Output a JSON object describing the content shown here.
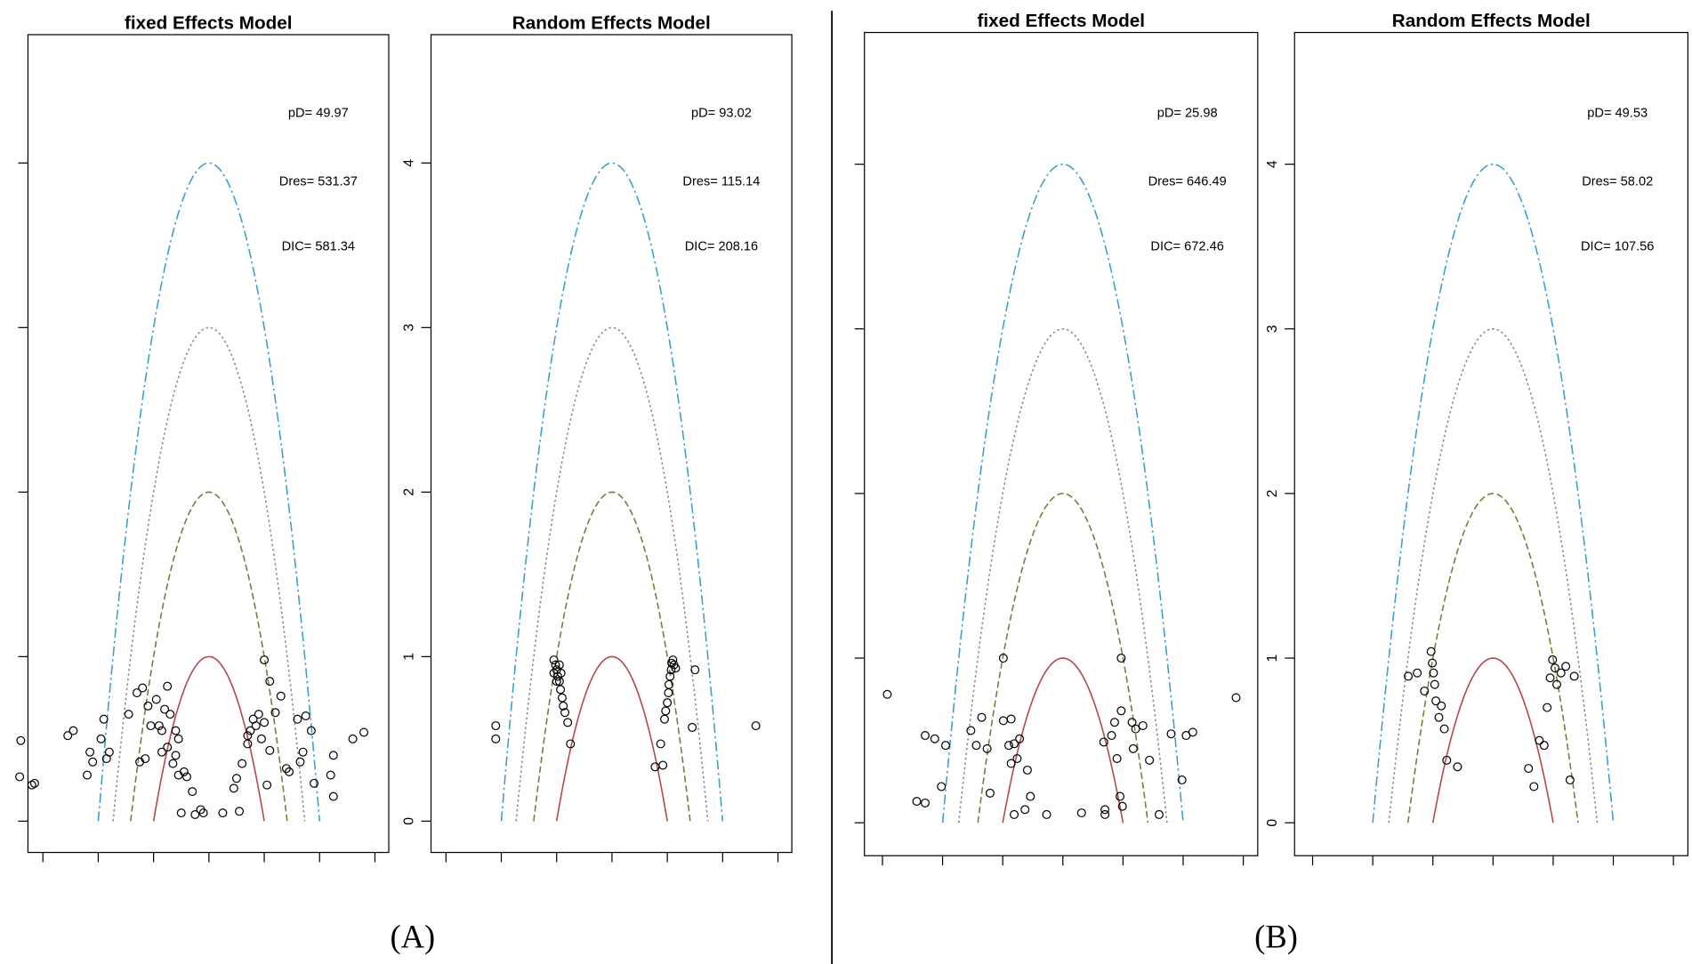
{
  "chart_data": [
    {
      "type": "scatter",
      "title": "fixed Effects Model",
      "x": [
        -3.4,
        -3.42,
        -3.2,
        -3.15,
        -2.55,
        -2.45,
        -2.2,
        -2.15,
        -2.1,
        -1.95,
        -1.9,
        -1.85,
        -1.8,
        -1.45,
        -1.3,
        -1.25,
        -1.2,
        -1.15,
        -1.1,
        -1.05,
        -0.9,
        -0.95,
        -0.85,
        -0.85,
        -0.8,
        -0.75,
        -0.75,
        -0.7,
        -0.65,
        -0.6,
        -0.6,
        -0.55,
        -0.55,
        -0.5,
        -0.45,
        -0.4,
        -0.3,
        -0.25,
        -0.15,
        -0.1,
        0.25,
        0.45,
        0.5,
        0.55,
        0.6,
        0.7,
        0.7,
        0.75,
        0.8,
        0.85,
        0.9,
        0.95,
        1.0,
        1.0,
        1.05,
        1.1,
        1.1,
        1.2,
        1.3,
        1.4,
        1.45,
        1.6,
        1.65,
        1.7,
        1.75,
        1.85,
        1.9,
        2.2,
        2.25,
        2.25,
        2.6,
        2.8
      ],
      "y": [
        0.49,
        0.27,
        0.22,
        0.23,
        0.52,
        0.55,
        0.28,
        0.42,
        0.36,
        0.5,
        0.62,
        0.38,
        0.42,
        0.65,
        0.78,
        0.36,
        0.81,
        0.38,
        0.7,
        0.58,
        0.58,
        0.74,
        0.42,
        0.55,
        0.68,
        0.82,
        0.45,
        0.65,
        0.35,
        0.55,
        0.4,
        0.5,
        0.28,
        0.05,
        0.3,
        0.27,
        0.18,
        0.04,
        0.07,
        0.05,
        0.05,
        0.2,
        0.26,
        0.06,
        0.35,
        0.47,
        0.52,
        0.55,
        0.62,
        0.58,
        0.65,
        0.5,
        0.98,
        0.6,
        0.22,
        0.85,
        0.43,
        0.66,
        0.76,
        0.32,
        0.3,
        0.62,
        0.36,
        0.42,
        0.64,
        0.55,
        0.23,
        0.28,
        0.4,
        0.15,
        0.5,
        0.54
      ],
      "xlim": [
        -3.27,
        3.25
      ],
      "ylim": [
        -0.19,
        4.78
      ],
      "xticks": [
        -3,
        -2,
        -1,
        0,
        1,
        2,
        3
      ],
      "yticks": [
        0,
        1,
        2,
        3,
        4
      ],
      "ytick_labels": false,
      "point_color": "#000000",
      "curves": [
        {
          "value": 1,
          "color": "#b5474b",
          "style": "solid"
        },
        {
          "value": 2,
          "color": "#7a7a3a",
          "style": "dashed"
        },
        {
          "value": 3,
          "color": "#8a8a8a",
          "style": "dotted"
        },
        {
          "value": 4,
          "color": "#3aa0d0",
          "style": "dashdot"
        }
      ],
      "annotations": [
        "pD= 49.97",
        "Dres= 531.37",
        "DIC= 581.34"
      ]
    },
    {
      "type": "scatter",
      "title": "Random Effects Model",
      "x": [
        -2.1,
        -2.1,
        -1.05,
        -1.02,
        -1.0,
        -0.98,
        -0.95,
        -0.93,
        -0.9,
        -0.88,
        -0.85,
        -1.0,
        -1.05,
        -0.95,
        -0.92,
        -0.8,
        -0.75,
        0.78,
        0.88,
        0.92,
        0.95,
        0.97,
        1.0,
        1.02,
        1.03,
        1.05,
        1.07,
        1.08,
        1.1,
        1.12,
        1.15,
        1.45,
        1.5,
        2.6
      ],
      "y": [
        0.58,
        0.5,
        0.98,
        0.95,
        0.92,
        0.88,
        0.85,
        0.8,
        0.75,
        0.7,
        0.66,
        0.85,
        0.9,
        0.95,
        0.9,
        0.6,
        0.47,
        0.33,
        0.47,
        0.34,
        0.62,
        0.67,
        0.72,
        0.78,
        0.83,
        0.88,
        0.92,
        0.96,
        0.98,
        0.95,
        0.93,
        0.57,
        0.92,
        0.58
      ],
      "xlim": [
        -3.27,
        3.25
      ],
      "ylim": [
        -0.19,
        4.78
      ],
      "xticks": [
        -3,
        -2,
        -1,
        0,
        1,
        2,
        3
      ],
      "yticks": [
        0,
        1,
        2,
        3,
        4
      ],
      "ytick_labels": true,
      "point_color": "#000000",
      "curves": [
        {
          "value": 1,
          "color": "#b5474b",
          "style": "solid"
        },
        {
          "value": 2,
          "color": "#7a7a3a",
          "style": "dashed"
        },
        {
          "value": 3,
          "color": "#8a8a8a",
          "style": "dotted"
        },
        {
          "value": 4,
          "color": "#3aa0d0",
          "style": "dashdot"
        }
      ],
      "annotations": [
        "pD= 93.02",
        "Dres= 115.14",
        "DIC= 208.16"
      ]
    },
    {
      "type": "scatter",
      "title": "fixed Effects Model",
      "x": [
        -2.92,
        -2.29,
        -2.13,
        -1.95,
        -2.43,
        -2.29,
        -2.02,
        -1.53,
        -1.44,
        -1.35,
        -1.26,
        -1.21,
        -0.99,
        -0.99,
        -0.86,
        -0.9,
        -0.81,
        -0.86,
        -0.76,
        -0.72,
        -0.59,
        -0.81,
        -0.63,
        -0.54,
        -0.27,
        0.31,
        0.7,
        0.68,
        0.81,
        0.86,
        0.9,
        0.97,
        0.97,
        0.95,
        0.99,
        1.15,
        1.21,
        1.17,
        1.33,
        1.44,
        1.6,
        1.8,
        1.98,
        2.05,
        2.16,
        2.88,
        0.7
      ],
      "y": [
        0.78,
        0.53,
        0.51,
        0.47,
        0.13,
        0.12,
        0.22,
        0.56,
        0.47,
        0.64,
        0.45,
        0.18,
        1.0,
        0.62,
        0.63,
        0.47,
        0.48,
        0.36,
        0.39,
        0.51,
        0.32,
        0.05,
        0.08,
        0.16,
        0.05,
        0.06,
        0.05,
        0.49,
        0.53,
        0.61,
        0.39,
        1.0,
        0.68,
        0.16,
        0.1,
        0.61,
        0.57,
        0.45,
        0.59,
        0.38,
        0.05,
        0.54,
        0.26,
        0.53,
        0.55,
        0.76,
        0.08
      ],
      "xlim": [
        -3.3,
        3.24
      ],
      "ylim": [
        -0.2,
        4.8
      ],
      "xticks": [
        -3,
        -2,
        -1,
        0,
        1,
        2,
        3
      ],
      "yticks": [
        0,
        1,
        2,
        3,
        4
      ],
      "ytick_labels": false,
      "point_color": "#000000",
      "curves": [
        {
          "value": 1,
          "color": "#b5474b",
          "style": "solid"
        },
        {
          "value": 2,
          "color": "#7a7a3a",
          "style": "dashed"
        },
        {
          "value": 3,
          "color": "#8a8a8a",
          "style": "dotted"
        },
        {
          "value": 4,
          "color": "#3aa0d0",
          "style": "dashdot"
        }
      ],
      "annotations": [
        "pD= 25.98",
        "Dres= 646.49",
        "DIC= 672.46"
      ]
    },
    {
      "type": "scatter",
      "title": "Random Effects Model",
      "x": [
        -1.41,
        -1.26,
        -1.14,
        -1.03,
        -1.01,
        -0.99,
        -0.97,
        -0.95,
        -0.9,
        -0.86,
        -0.81,
        -0.77,
        -0.59,
        0.59,
        0.68,
        0.77,
        0.85,
        0.9,
        0.95,
        0.99,
        1.03,
        1.06,
        1.13,
        1.21,
        1.35,
        1.28
      ],
      "y": [
        0.89,
        0.91,
        0.8,
        1.04,
        0.97,
        0.91,
        0.84,
        0.74,
        0.64,
        0.71,
        0.57,
        0.38,
        0.34,
        0.33,
        0.22,
        0.5,
        0.47,
        0.7,
        0.88,
        0.99,
        0.94,
        0.84,
        0.91,
        0.95,
        0.89,
        0.26
      ],
      "xlim": [
        -3.3,
        3.24
      ],
      "ylim": [
        -0.2,
        4.8
      ],
      "xticks": [
        -3,
        -2,
        -1,
        0,
        1,
        2,
        3
      ],
      "yticks": [
        0,
        1,
        2,
        3,
        4
      ],
      "ytick_labels": true,
      "point_color": "#000000",
      "curves": [
        {
          "value": 1,
          "color": "#b5474b",
          "style": "solid"
        },
        {
          "value": 2,
          "color": "#7a7a3a",
          "style": "dashed"
        },
        {
          "value": 3,
          "color": "#8a8a8a",
          "style": "dotted"
        },
        {
          "value": 4,
          "color": "#3aa0d0",
          "style": "dashdot"
        }
      ],
      "annotations": [
        "pD= 49.53",
        "Dres= 58.02",
        "DIC= 107.56"
      ]
    }
  ],
  "panel_labels": [
    "(A)",
    "(B)"
  ]
}
